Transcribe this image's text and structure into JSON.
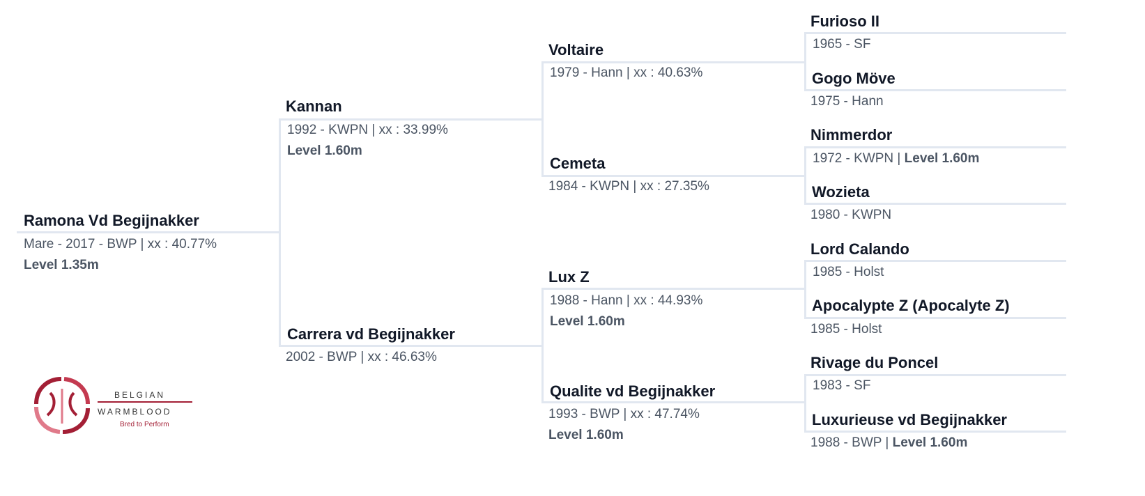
{
  "subject": {
    "name": "Ramona Vd Begijnakker",
    "info": "Mare - 2017 - BWP | xx : 40.77%",
    "level": "Level 1.35m"
  },
  "gen1": [
    {
      "name": "Kannan",
      "info": "1992 - KWPN | xx : 33.99%",
      "level": "Level 1.60m"
    },
    {
      "name": "Carrera vd Begijnakker",
      "info": "2002 - BWP | xx : 46.63%"
    }
  ],
  "gen2": [
    {
      "name": "Voltaire",
      "info": "1979 - Hann | xx : 40.63%"
    },
    {
      "name": "Cemeta",
      "info": "1984 - KWPN | xx : 27.35%"
    },
    {
      "name": "Lux Z",
      "info": "1988 - Hann | xx : 44.93%",
      "level": "Level 1.60m"
    },
    {
      "name": "Qualite vd Begijnakker",
      "info": "1993 - BWP | xx : 47.74%",
      "level": "Level 1.60m"
    }
  ],
  "gen3": [
    {
      "name": "Furioso II",
      "info": "1965 - SF"
    },
    {
      "name": "Gogo Möve",
      "info": "1975 - Hann"
    },
    {
      "name": "Nimmerdor",
      "info": "1972 - KWPN |",
      "level": "Level 1.60m"
    },
    {
      "name": "Wozieta",
      "info": "1980 - KWPN"
    },
    {
      "name": "Lord Calando",
      "info": "1985 - Holst"
    },
    {
      "name": "Apocalypte Z (Apocalyte Z)",
      "info": "1985 - Holst"
    },
    {
      "name": "Rivage du Poncel",
      "info": "1983 - SF"
    },
    {
      "name": "Luxurieuse vd Begijnakker",
      "info": "1988 - BWP |",
      "level": "Level 1.60m"
    }
  ],
  "logo": {
    "line1": "BELGIAN",
    "line2": "WARMBLOOD",
    "tagline": "Bred to Perform",
    "brand_color": "#a31f35",
    "accent_color": "#e07a8a"
  },
  "colors": {
    "connector": "#e1e7f0",
    "name": "#111827",
    "info": "#4b5563"
  }
}
